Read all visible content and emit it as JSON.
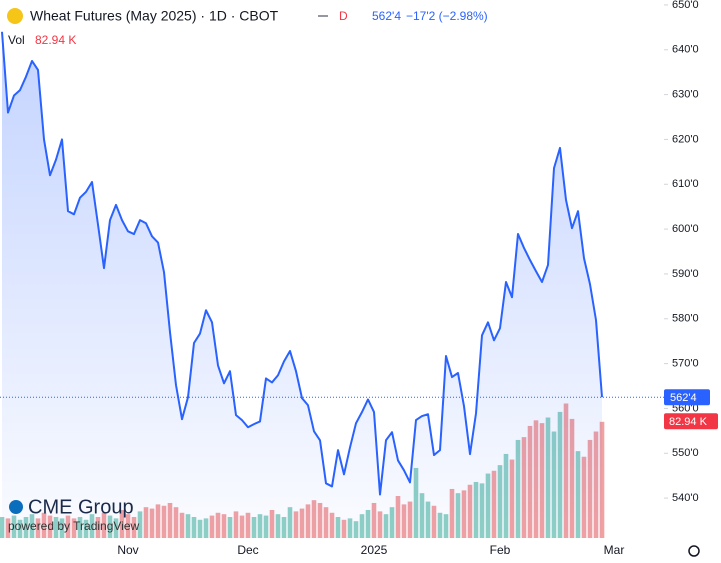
{
  "chart_data": {
    "type": "line",
    "title": "Wheat Futures (May 2025) · 1D · CBOT",
    "interval_badge": "D",
    "last_value_label": "562'4",
    "change_label": "−17'2 (−2.98%)",
    "logo": "CME Group",
    "attribution": "powered by TradingView",
    "categories": [
      null,
      null,
      null,
      null,
      null,
      null,
      null,
      null,
      null,
      null,
      null,
      null,
      null,
      null,
      null,
      null,
      null,
      null,
      null,
      null,
      null,
      "Nov",
      null,
      null,
      null,
      null,
      null,
      null,
      null,
      null,
      null,
      null,
      null,
      null,
      null,
      null,
      null,
      null,
      null,
      null,
      null,
      "Dec",
      null,
      null,
      null,
      null,
      null,
      null,
      null,
      null,
      null,
      null,
      null,
      null,
      null,
      null,
      null,
      null,
      null,
      null,
      null,
      null,
      "2025",
      null,
      null,
      null,
      null,
      null,
      null,
      null,
      null,
      null,
      null,
      null,
      null,
      null,
      null,
      null,
      null,
      null,
      null,
      null,
      null,
      "Feb",
      null,
      null,
      null,
      null,
      null,
      null,
      null,
      null,
      null,
      null,
      null,
      null,
      null,
      null,
      null,
      null,
      null,
      null,
      "Mar"
    ],
    "series": [
      {
        "color": "#2962ff",
        "values": [
          644,
          626,
          629.8,
          631,
          634,
          637.5,
          635.5,
          620,
          612,
          615.5,
          620,
          604,
          603.3,
          607,
          608.3,
          610.5,
          601,
          591.3,
          602,
          605.4,
          602,
          599.5,
          598.9,
          602,
          601.3,
          598.4,
          597,
          590.4,
          577,
          565.2,
          557.6,
          562.5,
          574.6,
          576.7,
          581.9,
          579.2,
          569.6,
          565.6,
          568.3,
          558.5,
          557.4,
          555.8,
          556.5,
          557.1,
          566.7,
          565.8,
          567.4,
          570.5,
          572.8,
          568.3,
          562.3,
          560.7,
          554.9,
          552.9,
          543.3,
          542.6,
          550.7,
          545.3,
          551.3,
          556.7,
          559.2,
          562,
          559.2,
          540.8,
          552.9,
          554.7,
          548.4,
          546.2,
          543.5,
          557.4,
          558.3,
          558.7,
          549.6,
          550.7,
          571.7,
          567,
          567.9,
          560.5,
          549.8,
          558.9,
          576.3,
          579.2,
          575.2,
          577.9,
          588.2,
          584.8,
          598.9,
          595.8,
          593.1,
          590.6,
          588.2,
          592,
          613.6,
          618.1,
          606.5,
          600.2,
          604,
          593.5,
          587.7,
          579.7,
          562.5,
          null,
          null
        ]
      }
    ],
    "volume": {
      "name": "Vol",
      "last_label": "82.94 K",
      "up_color": "#8fd0c4",
      "down_color": "#f2a1a1",
      "ylim": [
        0,
        384
      ],
      "values": [
        15,
        14,
        16,
        13,
        15,
        17,
        14,
        18,
        16,
        15,
        14,
        16,
        14,
        15,
        13,
        17,
        15,
        18,
        16,
        14,
        20,
        17,
        15,
        19,
        22,
        21,
        24,
        23,
        25,
        22,
        18,
        17,
        15,
        13,
        14,
        16,
        18,
        17,
        15,
        19,
        16,
        18,
        15,
        17,
        16,
        20,
        17,
        15,
        22,
        19,
        21,
        24,
        27,
        25,
        22,
        18,
        15,
        13,
        14,
        12,
        17,
        20,
        25,
        19,
        17,
        22,
        30,
        24,
        26,
        50,
        32,
        26,
        23,
        18,
        17,
        35,
        32,
        34,
        38,
        40,
        39,
        46,
        48,
        52,
        60,
        56,
        70,
        72,
        80,
        84,
        82,
        86,
        76,
        90,
        96,
        85,
        62,
        58,
        70,
        76,
        82.94,
        null,
        null
      ]
    },
    "ylim": [
      531.1,
      651.1
    ],
    "yticks": [
      {
        "value": 540,
        "label": "540'0"
      },
      {
        "value": 550,
        "label": "550'0"
      },
      {
        "value": 560,
        "label": "560'0"
      },
      {
        "value": 570,
        "label": "570'0"
      },
      {
        "value": 580,
        "label": "580'0"
      },
      {
        "value": 590,
        "label": "590'0"
      },
      {
        "value": 600,
        "label": "600'0"
      },
      {
        "value": 610,
        "label": "610'0"
      },
      {
        "value": 620,
        "label": "620'0"
      },
      {
        "value": 630,
        "label": "630'0"
      },
      {
        "value": 640,
        "label": "640'0"
      },
      {
        "value": 650,
        "label": "650'0"
      }
    ],
    "grid": false
  }
}
